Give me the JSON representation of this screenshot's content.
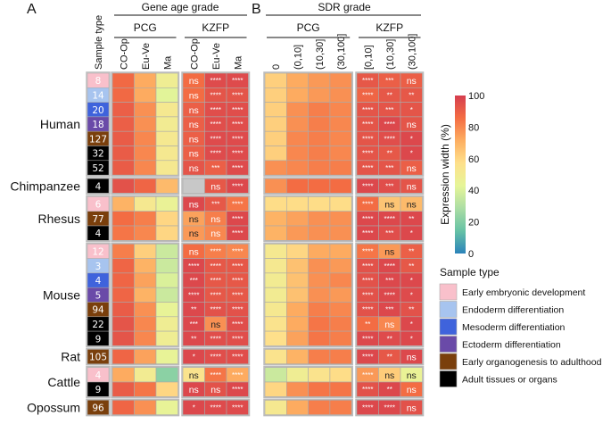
{
  "chart_data": {
    "type": "heatmap",
    "panel_labels": [
      "A",
      "B"
    ],
    "panels": [
      {
        "title": "Gene age grade",
        "groups": [
          {
            "name": "PCG",
            "columns": [
              "CO-Op",
              "Eu-Ve",
              "Ma"
            ]
          },
          {
            "name": "KZFP",
            "columns": [
              "CO-Op",
              "Eu-Ve",
              "Ma"
            ]
          }
        ]
      },
      {
        "title": "SDR grade",
        "groups": [
          {
            "name": "PCG",
            "columns": [
              "0",
              "(0,10]",
              "(10,30]",
              "(30,100]"
            ]
          },
          {
            "name": "KZFP",
            "columns": [
              "[0,10]",
              "(10,30]",
              "(30,100]"
            ]
          }
        ]
      }
    ],
    "sample_type_header": "Sample type",
    "colorbar": {
      "label": "Expression width (%)",
      "min": 0,
      "max": 100,
      "ticks": [
        "0",
        "20",
        "40",
        "60",
        "80",
        "100"
      ],
      "stops": [
        "#2b83ba",
        "#66c2a5",
        "#abdda4",
        "#e6f598",
        "#fee08b",
        "#fdae61",
        "#f46d43",
        "#d53e4f"
      ]
    },
    "legend": {
      "title": "Sample type",
      "items": [
        {
          "key": "emb",
          "label": "Early embryonic development",
          "color": "#f9c0cb"
        },
        {
          "key": "endo",
          "label": "Endoderm differentiation",
          "color": "#a7c4ef"
        },
        {
          "key": "meso",
          "label": "Mesoderm differentiation",
          "color": "#3f63dc"
        },
        {
          "key": "ecto",
          "label": "Ectoderm differentiation",
          "color": "#6a4aa8"
        },
        {
          "key": "org",
          "label": "Early organogenesis to adulthood",
          "color": "#7a3f0c"
        },
        {
          "key": "adult",
          "label": "Adult tissues or organs",
          "color": "#000000"
        }
      ]
    },
    "species": [
      {
        "name": "Human",
        "rows": [
          {
            "type": "emb",
            "n": "8",
            "pcg_age": [
              87,
              72,
              48
            ],
            "kzfp_age": [
              86,
              96,
              96
            ],
            "kzfp_age_sig": [
              "ns",
              "****",
              "****"
            ],
            "sdr_pcg": [
              62,
              72,
              76,
              78
            ],
            "sdr_kzfp": [
              92,
              90,
              90
            ],
            "sdr_kzfp_sig": [
              "****",
              "***",
              "ns"
            ]
          },
          {
            "type": "endo",
            "n": "14",
            "pcg_age": [
              87,
              72,
              42
            ],
            "kzfp_age": [
              86,
              93,
              93
            ],
            "kzfp_age_sig": [
              "ns",
              "****",
              "****"
            ],
            "sdr_pcg": [
              62,
              72,
              76,
              78
            ],
            "sdr_kzfp": [
              88,
              92,
              92
            ],
            "sdr_kzfp_sig": [
              "****",
              "**",
              "**"
            ]
          },
          {
            "type": "meso",
            "n": "20",
            "pcg_age": [
              90,
              78,
              52
            ],
            "kzfp_age": [
              90,
              95,
              95
            ],
            "kzfp_age_sig": [
              "ns",
              "****",
              "****"
            ],
            "sdr_pcg": [
              62,
              78,
              82,
              80
            ],
            "sdr_kzfp": [
              93,
              93,
              93
            ],
            "sdr_kzfp_sig": [
              "****",
              "***",
              "*"
            ]
          },
          {
            "type": "ecto",
            "n": "18",
            "pcg_age": [
              90,
              78,
              50
            ],
            "kzfp_age": [
              90,
              95,
              95
            ],
            "kzfp_age_sig": [
              "ns",
              "****",
              "****"
            ],
            "sdr_pcg": [
              62,
              78,
              82,
              80
            ],
            "sdr_kzfp": [
              93,
              97,
              93
            ],
            "sdr_kzfp_sig": [
              "****",
              "****",
              "ns"
            ]
          },
          {
            "type": "org",
            "n": "127",
            "pcg_age": [
              91,
              80,
              52
            ],
            "kzfp_age": [
              90,
              96,
              96
            ],
            "kzfp_age_sig": [
              "ns",
              "****",
              "****"
            ],
            "sdr_pcg": [
              62,
              80,
              82,
              80
            ],
            "sdr_kzfp": [
              93,
              95,
              97
            ],
            "sdr_kzfp_sig": [
              "****",
              "****",
              "*"
            ]
          },
          {
            "type": "adult",
            "n": "32",
            "pcg_age": [
              91,
              80,
              52
            ],
            "kzfp_age": [
              90,
              96,
              96
            ],
            "kzfp_age_sig": [
              "ns",
              "****",
              "****"
            ],
            "sdr_pcg": [
              62,
              80,
              82,
              80
            ],
            "sdr_kzfp": [
              93,
              92,
              97
            ],
            "sdr_kzfp_sig": [
              "****",
              "**",
              "*"
            ]
          },
          {
            "type": "adult",
            "n": "52",
            "pcg_age": [
              91,
              80,
              52
            ],
            "kzfp_age": [
              93,
              90,
              96
            ],
            "kzfp_age_sig": [
              "ns",
              "***",
              "****"
            ],
            "sdr_pcg": [
              78,
              80,
              82,
              82
            ],
            "sdr_kzfp": [
              93,
              93,
              90
            ],
            "sdr_kzfp_sig": [
              "****",
              "***",
              "ns"
            ]
          }
        ]
      },
      {
        "name": "Chimpanzee",
        "rows": [
          {
            "type": "adult",
            "n": "4",
            "pcg_age": [
              94,
              88,
              68
            ],
            "kzfp_age": [
              null,
              92,
              97
            ],
            "kzfp_age_sig": [
              "",
              "ns",
              "****"
            ],
            "sdr_pcg": [
              78,
              86,
              86,
              86
            ],
            "sdr_kzfp": [
              97,
              95,
              93
            ],
            "sdr_kzfp_sig": [
              "****",
              "***",
              "ns"
            ]
          }
        ]
      },
      {
        "name": "Rhesus",
        "rows": [
          {
            "type": "emb",
            "n": "6",
            "pcg_age": [
              70,
              52,
              45
            ],
            "kzfp_age": [
              97,
              92,
              84
            ],
            "kzfp_age_sig": [
              "ns",
              "***",
              "****"
            ],
            "sdr_pcg": [
              58,
              58,
              58,
              58
            ],
            "sdr_kzfp": [
              86,
              65,
              68
            ],
            "sdr_kzfp_sig": [
              "****",
              "ns",
              "ns"
            ]
          },
          {
            "type": "org",
            "n": "77",
            "pcg_age": [
              86,
              82,
              60
            ],
            "kzfp_age": [
              74,
              82,
              97
            ],
            "kzfp_age_sig": [
              "ns",
              "ns",
              "****"
            ],
            "sdr_pcg": [
              70,
              74,
              78,
              78
            ],
            "sdr_kzfp": [
              97,
              97,
              97
            ],
            "sdr_kzfp_sig": [
              "****",
              "****",
              "**"
            ]
          },
          {
            "type": "adult",
            "n": "4",
            "pcg_age": [
              84,
              80,
              60
            ],
            "kzfp_age": [
              76,
              80,
              97
            ],
            "kzfp_age_sig": [
              "ns",
              "ns",
              "****"
            ],
            "sdr_pcg": [
              70,
              76,
              78,
              78
            ],
            "sdr_kzfp": [
              97,
              95,
              97
            ],
            "sdr_kzfp_sig": [
              "****",
              "***",
              "*"
            ]
          }
        ]
      },
      {
        "name": "Mouse",
        "rows": [
          {
            "type": "emb",
            "n": "12",
            "pcg_age": [
              82,
              62,
              36
            ],
            "kzfp_age": [
              86,
              82,
              80
            ],
            "kzfp_age_sig": [
              "ns",
              "****",
              "****"
            ],
            "sdr_pcg": [
              52,
              60,
              72,
              72
            ],
            "sdr_kzfp": [
              84,
              76,
              90
            ],
            "sdr_kzfp_sig": [
              "****",
              "ns",
              "**"
            ]
          },
          {
            "type": "endo",
            "n": "3",
            "pcg_age": [
              88,
              70,
              36
            ],
            "kzfp_age": [
              97,
              92,
              92
            ],
            "kzfp_age_sig": [
              "****",
              "****",
              "****"
            ],
            "sdr_pcg": [
              52,
              66,
              78,
              76
            ],
            "sdr_kzfp": [
              94,
              97,
              92
            ],
            "sdr_kzfp_sig": [
              "****",
              "****",
              "**"
            ]
          },
          {
            "type": "meso",
            "n": "4",
            "pcg_age": [
              88,
              74,
              40
            ],
            "kzfp_age": [
              97,
              92,
              92
            ],
            "kzfp_age_sig": [
              "***",
              "****",
              "****"
            ],
            "sdr_pcg": [
              50,
              66,
              78,
              80
            ],
            "sdr_kzfp": [
              94,
              97,
              97
            ],
            "sdr_kzfp_sig": [
              "****",
              "***",
              "*"
            ]
          },
          {
            "type": "ecto",
            "n": "5",
            "pcg_age": [
              88,
              70,
              36
            ],
            "kzfp_age": [
              97,
              92,
              92
            ],
            "kzfp_age_sig": [
              "****",
              "****",
              "****"
            ],
            "sdr_pcg": [
              50,
              66,
              78,
              76
            ],
            "sdr_kzfp": [
              94,
              97,
              96
            ],
            "sdr_kzfp_sig": [
              "****",
              "****",
              "*"
            ]
          },
          {
            "type": "org",
            "n": "94",
            "pcg_age": [
              91,
              78,
              44
            ],
            "kzfp_age": [
              97,
              94,
              94
            ],
            "kzfp_age_sig": [
              "**",
              "****",
              "****"
            ],
            "sdr_pcg": [
              52,
              72,
              82,
              80
            ],
            "sdr_kzfp": [
              94,
              97,
              94
            ],
            "sdr_kzfp_sig": [
              "****",
              "***",
              "**"
            ]
          },
          {
            "type": "adult",
            "n": "22",
            "pcg_age": [
              93,
              80,
              48
            ],
            "kzfp_age": [
              97,
              78,
              95
            ],
            "kzfp_age_sig": [
              "***",
              "ns",
              "****"
            ],
            "sdr_pcg": [
              55,
              72,
              84,
              82
            ],
            "sdr_kzfp": [
              86,
              80,
              97
            ],
            "sdr_kzfp_sig": [
              "**",
              "ns",
              "*"
            ]
          },
          {
            "type": "adult",
            "n": "9",
            "pcg_age": [
              93,
              80,
              48
            ],
            "kzfp_age": [
              97,
              95,
              95
            ],
            "kzfp_age_sig": [
              "**",
              "****",
              "****"
            ],
            "sdr_pcg": [
              57,
              74,
              84,
              82
            ],
            "sdr_kzfp": [
              97,
              96,
              97
            ],
            "sdr_kzfp_sig": [
              "****",
              "**",
              "*"
            ]
          }
        ]
      },
      {
        "name": "Rat",
        "rows": [
          {
            "type": "org",
            "n": "105",
            "pcg_age": [
              88,
              74,
              44
            ],
            "kzfp_age": [
              97,
              95,
              95
            ],
            "kzfp_age_sig": [
              "*",
              "****",
              "****"
            ],
            "sdr_pcg": [
              55,
              70,
              82,
              82
            ],
            "sdr_kzfp": [
              97,
              92,
              97
            ],
            "sdr_kzfp_sig": [
              "****",
              "**",
              "ns"
            ]
          }
        ]
      },
      {
        "name": "Cattle",
        "rows": [
          {
            "type": "emb",
            "n": "4",
            "pcg_age": [
              72,
              50,
              22
            ],
            "kzfp_age": [
              55,
              84,
              72
            ],
            "kzfp_age_sig": [
              "ns",
              "****",
              "****"
            ],
            "sdr_pcg": [
              36,
              48,
              55,
              58
            ],
            "sdr_kzfp": [
              76,
              63,
              45
            ],
            "sdr_kzfp_sig": [
              "****",
              "ns",
              "ns"
            ]
          },
          {
            "type": "adult",
            "n": "9",
            "pcg_age": [
              91,
              84,
              60
            ],
            "kzfp_age": [
              97,
              94,
              97
            ],
            "kzfp_age_sig": [
              "ns",
              "ns",
              "****"
            ],
            "sdr_pcg": [
              60,
              78,
              84,
              84
            ],
            "sdr_kzfp": [
              94,
              97,
              86
            ],
            "sdr_kzfp_sig": [
              "****",
              "**",
              "ns"
            ]
          }
        ]
      },
      {
        "name": "Opossum",
        "rows": [
          {
            "type": "org",
            "n": "96",
            "pcg_age": [
              88,
              78,
              44
            ],
            "kzfp_age": [
              97,
              96,
              96
            ],
            "kzfp_age_sig": [
              "*",
              "****",
              "****"
            ],
            "sdr_pcg": [
              52,
              72,
              82,
              82
            ],
            "sdr_kzfp": [
              97,
              97,
              94
            ],
            "sdr_kzfp_sig": [
              "****",
              "****",
              "ns"
            ]
          }
        ]
      }
    ]
  }
}
